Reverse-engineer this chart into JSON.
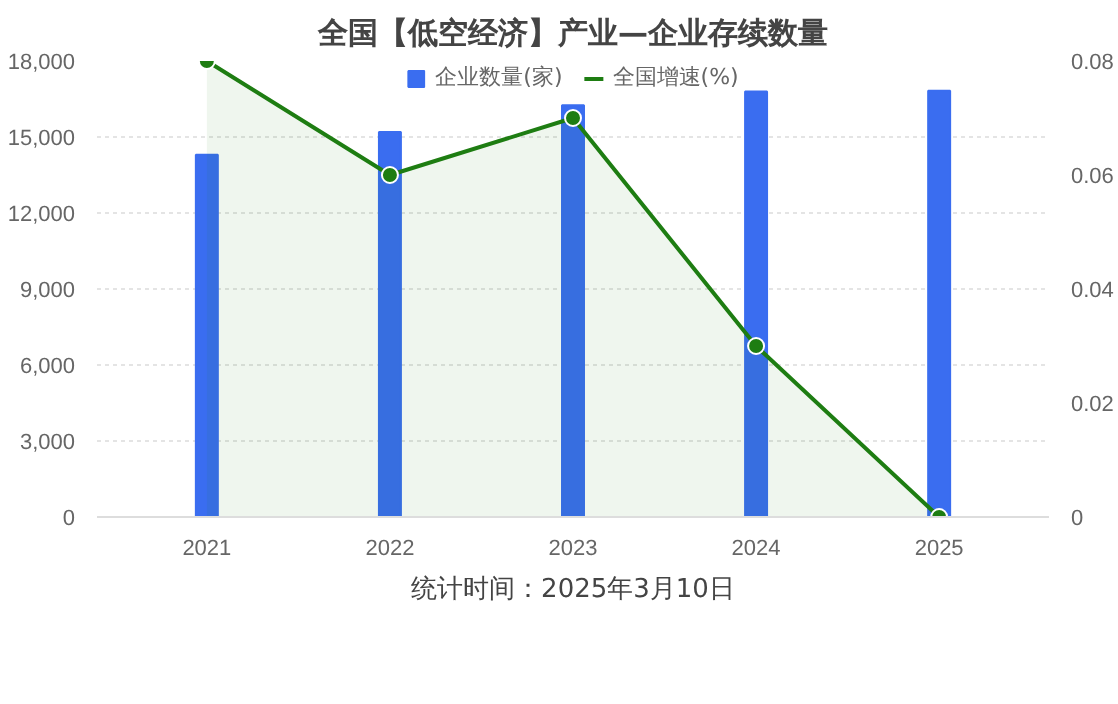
{
  "chart_data": {
    "type": "bar",
    "title": "全国【低空经济】产业—企业存续数量",
    "categories": [
      "2021",
      "2022",
      "2023",
      "2024",
      "2025"
    ],
    "series": [
      {
        "name": "企业数量(家)",
        "color": "#3a6df0",
        "values": [
          14300,
          15200,
          16250,
          16800,
          16830
        ]
      },
      {
        "name": "全国增速(%)",
        "type": "area",
        "axis": "y2",
        "color": "#1e7d12",
        "values": [
          0.08,
          0.06,
          0.07,
          0.03,
          0
        ]
      }
    ],
    "ylim": [
      0,
      18000
    ],
    "yticks": [
      0,
      {
        "value": 3000,
        "label": "3,000"
      },
      {
        "value": 6000,
        "label": "6,000"
      },
      {
        "value": 9000,
        "label": "9,000"
      },
      {
        "value": 12000,
        "label": "12,000"
      },
      {
        "value": 15000,
        "label": "15,000"
      },
      {
        "value": 18000,
        "label": "18,000"
      }
    ],
    "y2lim": [
      0,
      0.08
    ],
    "y2ticks": [
      0,
      0.02,
      0.04,
      0.06,
      0.08
    ],
    "grid": "y",
    "legend": "top",
    "marker": "circle",
    "annotations": [
      "统计时间：2025年3月10日"
    ]
  }
}
